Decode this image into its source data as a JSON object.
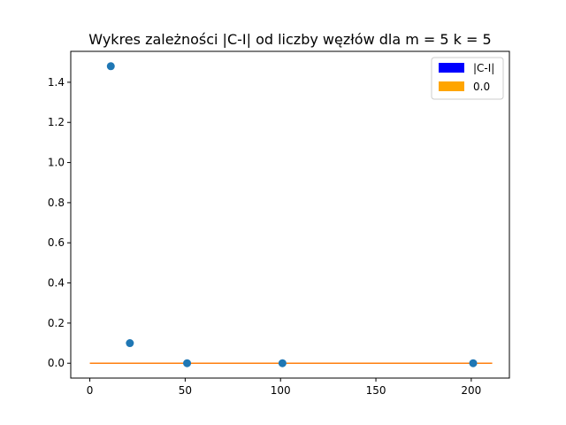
{
  "chart_data": {
    "type": "scatter",
    "title": "Wykres zależności |C-I| od liczby węzłów dla m = 5 k = 5",
    "xlabel": "",
    "ylabel": "",
    "xlim": [
      -10,
      220
    ],
    "ylim": [
      -0.074,
      1.554
    ],
    "xticks": [
      0,
      50,
      100,
      150,
      200
    ],
    "yticks": [
      0.0,
      0.2,
      0.4,
      0.6,
      0.8,
      1.0,
      1.2,
      1.4
    ],
    "ytick_labels": [
      "0.0",
      "0.2",
      "0.4",
      "0.6",
      "0.8",
      "1.0",
      "1.2",
      "1.4"
    ],
    "grid": false,
    "legend_position": "upper-right",
    "series": [
      {
        "name": "|C-I|",
        "kind": "scatter",
        "legend_color": "#0000ff",
        "marker_color": "#1f77b4",
        "points": [
          {
            "x": 11,
            "y": 1.48
          },
          {
            "x": 21,
            "y": 0.1
          },
          {
            "x": 51,
            "y": 0.0
          },
          {
            "x": 101,
            "y": 0.0
          },
          {
            "x": 201,
            "y": 0.0
          }
        ]
      },
      {
        "name": "0.0",
        "kind": "line",
        "color": "#ffa500",
        "line_color": "#ff7f0e",
        "points": [
          {
            "x": 0,
            "y": 0.0
          },
          {
            "x": 211,
            "y": 0.0
          }
        ]
      }
    ]
  }
}
